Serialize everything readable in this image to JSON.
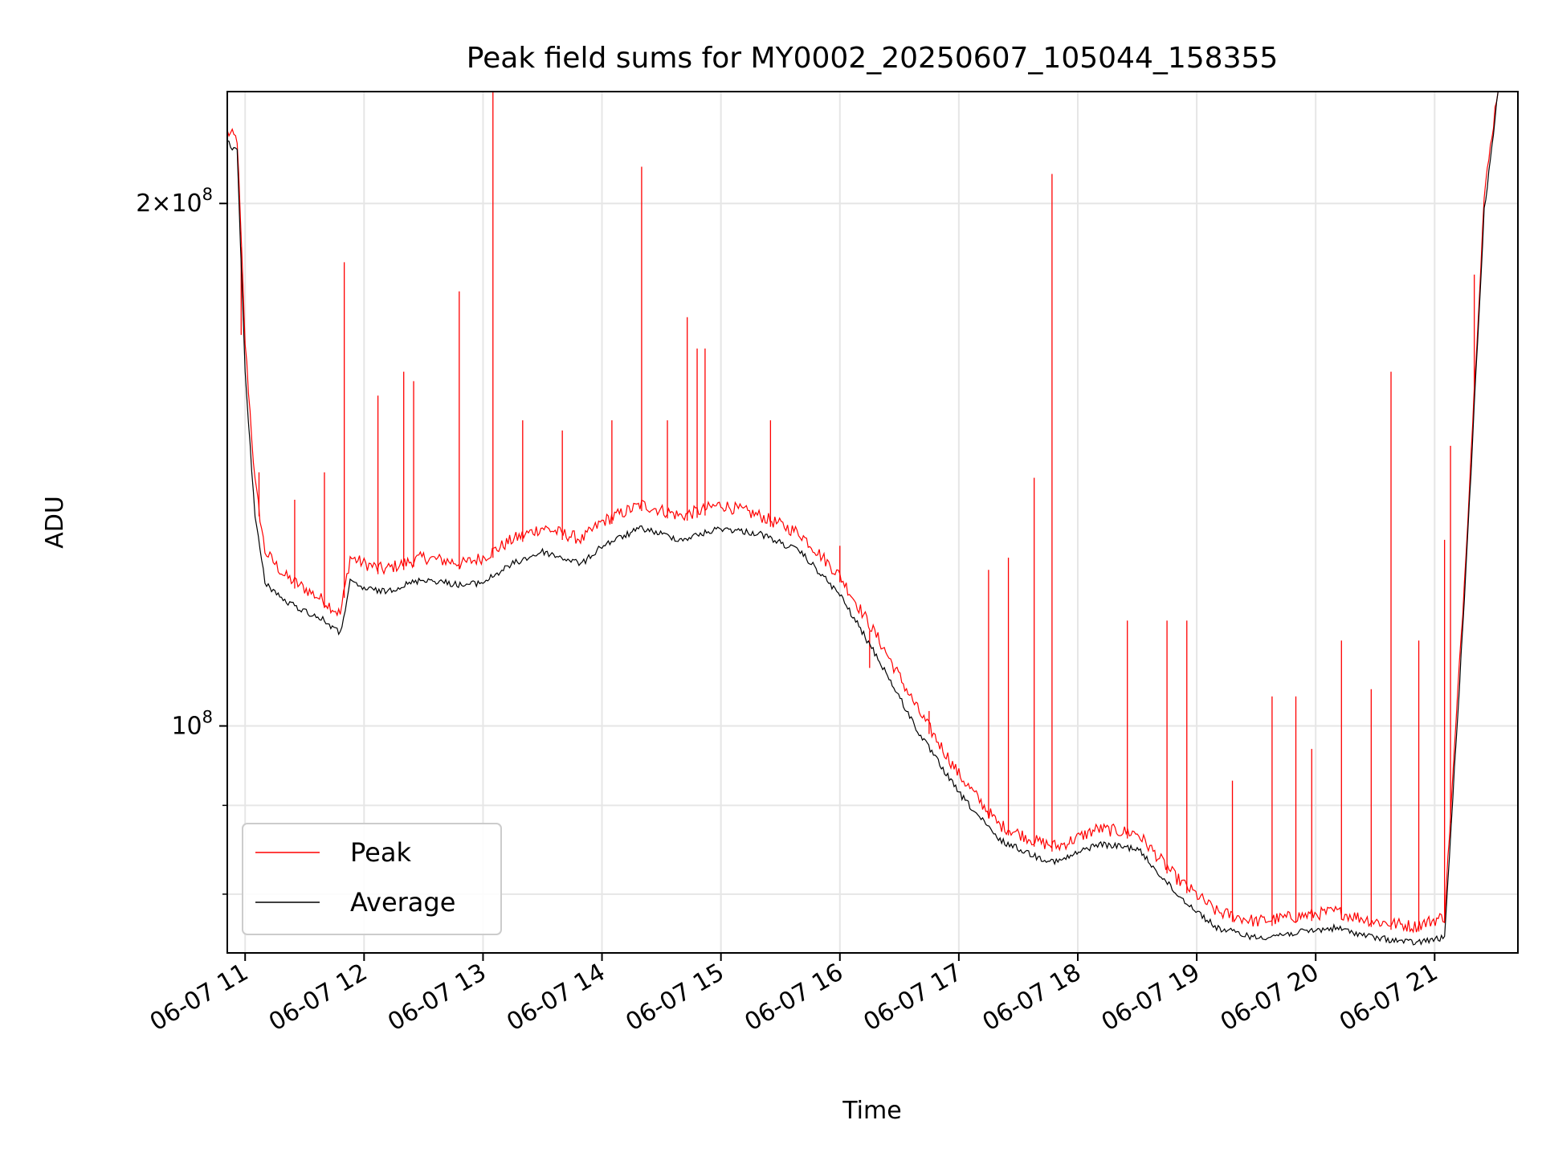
{
  "chart_data": {
    "type": "line",
    "title": "Peak field sums for MY0002_20250607_105044_158355",
    "xlabel": "Time",
    "ylabel": "ADU",
    "y_scale": "log",
    "xlim": [
      "2025-06-07 10:51",
      "2025-06-07 21:42"
    ],
    "ylim": [
      74000000,
      232000000
    ],
    "x_ticks": [
      {
        "value": "2025-06-07 11:00",
        "label": "06-07 11"
      },
      {
        "value": "2025-06-07 12:00",
        "label": "06-07 12"
      },
      {
        "value": "2025-06-07 13:00",
        "label": "06-07 13"
      },
      {
        "value": "2025-06-07 14:00",
        "label": "06-07 14"
      },
      {
        "value": "2025-06-07 15:00",
        "label": "06-07 15"
      },
      {
        "value": "2025-06-07 16:00",
        "label": "06-07 16"
      },
      {
        "value": "2025-06-07 17:00",
        "label": "06-07 17"
      },
      {
        "value": "2025-06-07 18:00",
        "label": "06-07 18"
      },
      {
        "value": "2025-06-07 19:00",
        "label": "06-07 19"
      },
      {
        "value": "2025-06-07 20:00",
        "label": "06-07 20"
      },
      {
        "value": "2025-06-07 21:00",
        "label": "06-07 21"
      }
    ],
    "y_major_ticks": [
      {
        "value": 100000000,
        "base": "10",
        "exp": "8"
      },
      {
        "value": 200000000,
        "coef": "2",
        "base": "10",
        "exp": "8"
      }
    ],
    "y_minor_ticks": [
      80000000,
      90000000
    ],
    "grid": true,
    "legend": {
      "position": "lower-left"
    },
    "series": [
      {
        "name": "Peak",
        "color": "#ff0000",
        "x": [
          "2025-06-07 10:51",
          "2025-06-07 10:56",
          "2025-06-07 11:00",
          "2025-06-07 11:05",
          "2025-06-07 11:10",
          "2025-06-07 11:20",
          "2025-06-07 11:30",
          "2025-06-07 11:40",
          "2025-06-07 11:48",
          "2025-06-07 11:53",
          "2025-06-07 12:00",
          "2025-06-07 12:10",
          "2025-06-07 12:30",
          "2025-06-07 12:50",
          "2025-06-07 13:00",
          "2025-06-07 13:15",
          "2025-06-07 13:30",
          "2025-06-07 13:50",
          "2025-06-07 14:00",
          "2025-06-07 14:20",
          "2025-06-07 14:40",
          "2025-06-07 15:00",
          "2025-06-07 15:20",
          "2025-06-07 15:40",
          "2025-06-07 16:00",
          "2025-06-07 16:20",
          "2025-06-07 16:40",
          "2025-06-07 17:00",
          "2025-06-07 17:20",
          "2025-06-07 17:40",
          "2025-06-07 17:50",
          "2025-06-07 18:10",
          "2025-06-07 18:30",
          "2025-06-07 18:50",
          "2025-06-07 19:10",
          "2025-06-07 19:30",
          "2025-06-07 19:50",
          "2025-06-07 20:10",
          "2025-06-07 20:30",
          "2025-06-07 20:50",
          "2025-06-07 21:05",
          "2025-06-07 21:15",
          "2025-06-07 21:25",
          "2025-06-07 21:32"
        ],
        "y": [
          218000000,
          216000000,
          165000000,
          137000000,
          125000000,
          121000000,
          119000000,
          117000000,
          115000000,
          124000000,
          123000000,
          122000000,
          124000000,
          123000000,
          124000000,
          127000000,
          129000000,
          127000000,
          130000000,
          133000000,
          131000000,
          133000000,
          131000000,
          128000000,
          121000000,
          111000000,
          101000000,
          93000000,
          87000000,
          85000000,
          84500000,
          86500000,
          86000000,
          81000000,
          77500000,
          76500000,
          77000000,
          77500000,
          76500000,
          76000000,
          77000000,
          120000000,
          200000000,
          232000000
        ]
      },
      {
        "name": "Average",
        "color": "#000000",
        "x": [
          "2025-06-07 10:51",
          "2025-06-07 10:56",
          "2025-06-07 11:00",
          "2025-06-07 11:05",
          "2025-06-07 11:10",
          "2025-06-07 11:20",
          "2025-06-07 11:30",
          "2025-06-07 11:40",
          "2025-06-07 11:48",
          "2025-06-07 11:53",
          "2025-06-07 12:00",
          "2025-06-07 12:10",
          "2025-06-07 12:30",
          "2025-06-07 12:50",
          "2025-06-07 13:00",
          "2025-06-07 13:15",
          "2025-06-07 13:30",
          "2025-06-07 13:50",
          "2025-06-07 14:00",
          "2025-06-07 14:20",
          "2025-06-07 14:40",
          "2025-06-07 15:00",
          "2025-06-07 15:20",
          "2025-06-07 15:40",
          "2025-06-07 16:00",
          "2025-06-07 16:20",
          "2025-06-07 16:40",
          "2025-06-07 17:00",
          "2025-06-07 17:20",
          "2025-06-07 17:40",
          "2025-06-07 17:50",
          "2025-06-07 18:10",
          "2025-06-07 18:30",
          "2025-06-07 18:50",
          "2025-06-07 19:10",
          "2025-06-07 19:30",
          "2025-06-07 19:50",
          "2025-06-07 20:10",
          "2025-06-07 20:30",
          "2025-06-07 20:50",
          "2025-06-07 21:05",
          "2025-06-07 21:15",
          "2025-06-07 21:25",
          "2025-06-07 21:32"
        ],
        "y": [
          217000000,
          214000000,
          160000000,
          132000000,
          121000000,
          118000000,
          116500000,
          115000000,
          113000000,
          121000000,
          120000000,
          119500000,
          121500000,
          120500000,
          121000000,
          124000000,
          126000000,
          124000000,
          127000000,
          130000000,
          128000000,
          130000000,
          129000000,
          126000000,
          119000000,
          109000000,
          99000000,
          91500000,
          86000000,
          84000000,
          83500000,
          85500000,
          85000000,
          80000000,
          76500000,
          75500000,
          76000000,
          76500000,
          75500000,
          75000000,
          75500000,
          118000000,
          198000000,
          232000000
        ]
      }
    ],
    "spikes": {
      "series": "Peak",
      "points": [
        {
          "x": "2025-06-07 10:58",
          "y": 168000000
        },
        {
          "x": "2025-06-07 11:07",
          "y": 140000000
        },
        {
          "x": "2025-06-07 11:25",
          "y": 135000000
        },
        {
          "x": "2025-06-07 11:40",
          "y": 140000000
        },
        {
          "x": "2025-06-07 11:50",
          "y": 185000000
        },
        {
          "x": "2025-06-07 12:07",
          "y": 155000000
        },
        {
          "x": "2025-06-07 12:20",
          "y": 160000000
        },
        {
          "x": "2025-06-07 12:25",
          "y": 158000000
        },
        {
          "x": "2025-06-07 12:48",
          "y": 178000000
        },
        {
          "x": "2025-06-07 13:05",
          "y": 232000000
        },
        {
          "x": "2025-06-07 13:20",
          "y": 150000000
        },
        {
          "x": "2025-06-07 13:40",
          "y": 148000000
        },
        {
          "x": "2025-06-07 14:05",
          "y": 150000000
        },
        {
          "x": "2025-06-07 14:20",
          "y": 210000000
        },
        {
          "x": "2025-06-07 14:33",
          "y": 150000000
        },
        {
          "x": "2025-06-07 14:43",
          "y": 172000000
        },
        {
          "x": "2025-06-07 14:48",
          "y": 165000000
        },
        {
          "x": "2025-06-07 14:52",
          "y": 165000000
        },
        {
          "x": "2025-06-07 15:25",
          "y": 150000000
        },
        {
          "x": "2025-06-07 16:00",
          "y": 127000000
        },
        {
          "x": "2025-06-07 16:15",
          "y": 108000000
        },
        {
          "x": "2025-06-07 16:45",
          "y": 102000000
        },
        {
          "x": "2025-06-07 17:15",
          "y": 123000000
        },
        {
          "x": "2025-06-07 17:25",
          "y": 125000000
        },
        {
          "x": "2025-06-07 17:38",
          "y": 139000000
        },
        {
          "x": "2025-06-07 17:47",
          "y": 208000000
        },
        {
          "x": "2025-06-07 18:25",
          "y": 115000000
        },
        {
          "x": "2025-06-07 18:45",
          "y": 115000000
        },
        {
          "x": "2025-06-07 18:55",
          "y": 115000000
        },
        {
          "x": "2025-06-07 19:18",
          "y": 93000000
        },
        {
          "x": "2025-06-07 19:38",
          "y": 104000000
        },
        {
          "x": "2025-06-07 19:50",
          "y": 104000000
        },
        {
          "x": "2025-06-07 19:58",
          "y": 97000000
        },
        {
          "x": "2025-06-07 20:13",
          "y": 112000000
        },
        {
          "x": "2025-06-07 20:28",
          "y": 105000000
        },
        {
          "x": "2025-06-07 20:38",
          "y": 160000000
        },
        {
          "x": "2025-06-07 20:52",
          "y": 112000000
        },
        {
          "x": "2025-06-07 21:05",
          "y": 128000000
        },
        {
          "x": "2025-06-07 21:08",
          "y": 145000000
        },
        {
          "x": "2025-06-07 21:20",
          "y": 182000000
        }
      ]
    }
  }
}
